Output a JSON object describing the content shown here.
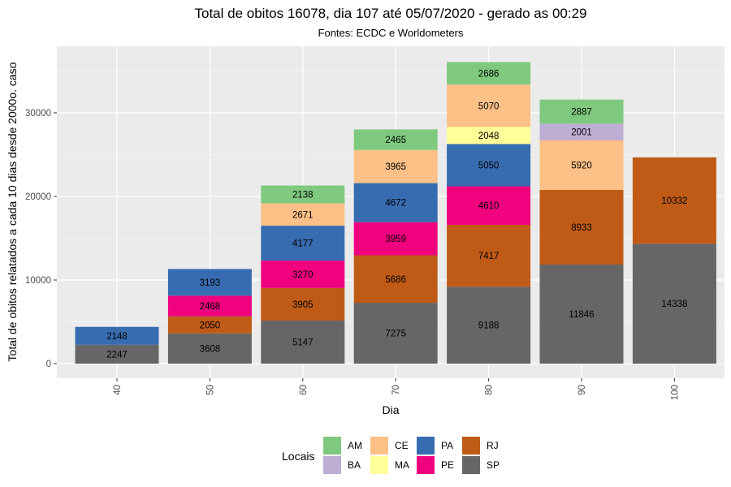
{
  "chart_data": {
    "type": "bar",
    "stacked": true,
    "title": "Total de obitos 16078, dia 107 até 05/07/2020 - gerado as 00:29",
    "subtitle": "Fontes: ECDC e Worldometers",
    "xlabel": "Dia",
    "ylabel": "Total de obitos relatados a cada 10 dias desde 2000o. caso",
    "categories": [
      "40",
      "50",
      "60",
      "70",
      "80",
      "90",
      "100"
    ],
    "ylim": [
      0,
      36000
    ],
    "y_ticks": [
      0,
      10000,
      20000,
      30000
    ],
    "y_tick_labels": [
      "0",
      "10000",
      "20000",
      "30000"
    ],
    "grid": true,
    "legend": {
      "title": "Locais",
      "position": "bottom",
      "entries": [
        "AM",
        "BA",
        "CE",
        "MA",
        "PA",
        "PE",
        "RJ",
        "SP"
      ]
    },
    "series": [
      {
        "name": "SP",
        "color": "#666666",
        "values": [
          2247,
          3608,
          5147,
          7275,
          9188,
          11846,
          14338
        ]
      },
      {
        "name": "RJ",
        "color": "#BF5B17",
        "values": [
          null,
          2050,
          3905,
          5686,
          7417,
          8933,
          10332
        ]
      },
      {
        "name": "PE",
        "color": "#F0027F",
        "values": [
          null,
          2468,
          3270,
          3959,
          4610,
          null,
          null
        ]
      },
      {
        "name": "PA",
        "color": "#386CB0",
        "values": [
          2148,
          3193,
          4177,
          4672,
          5050,
          null,
          null
        ]
      },
      {
        "name": "MA",
        "color": "#FFFF99",
        "values": [
          null,
          null,
          null,
          null,
          2048,
          null,
          null
        ]
      },
      {
        "name": "CE",
        "color": "#FDC086",
        "values": [
          null,
          null,
          2671,
          3965,
          5070,
          5920,
          null
        ]
      },
      {
        "name": "BA",
        "color": "#BEAED4",
        "values": [
          null,
          null,
          null,
          null,
          null,
          2001,
          null
        ]
      },
      {
        "name": "AM",
        "color": "#7FC97F",
        "values": [
          null,
          null,
          2138,
          2465,
          2686,
          2887,
          null
        ]
      }
    ]
  }
}
